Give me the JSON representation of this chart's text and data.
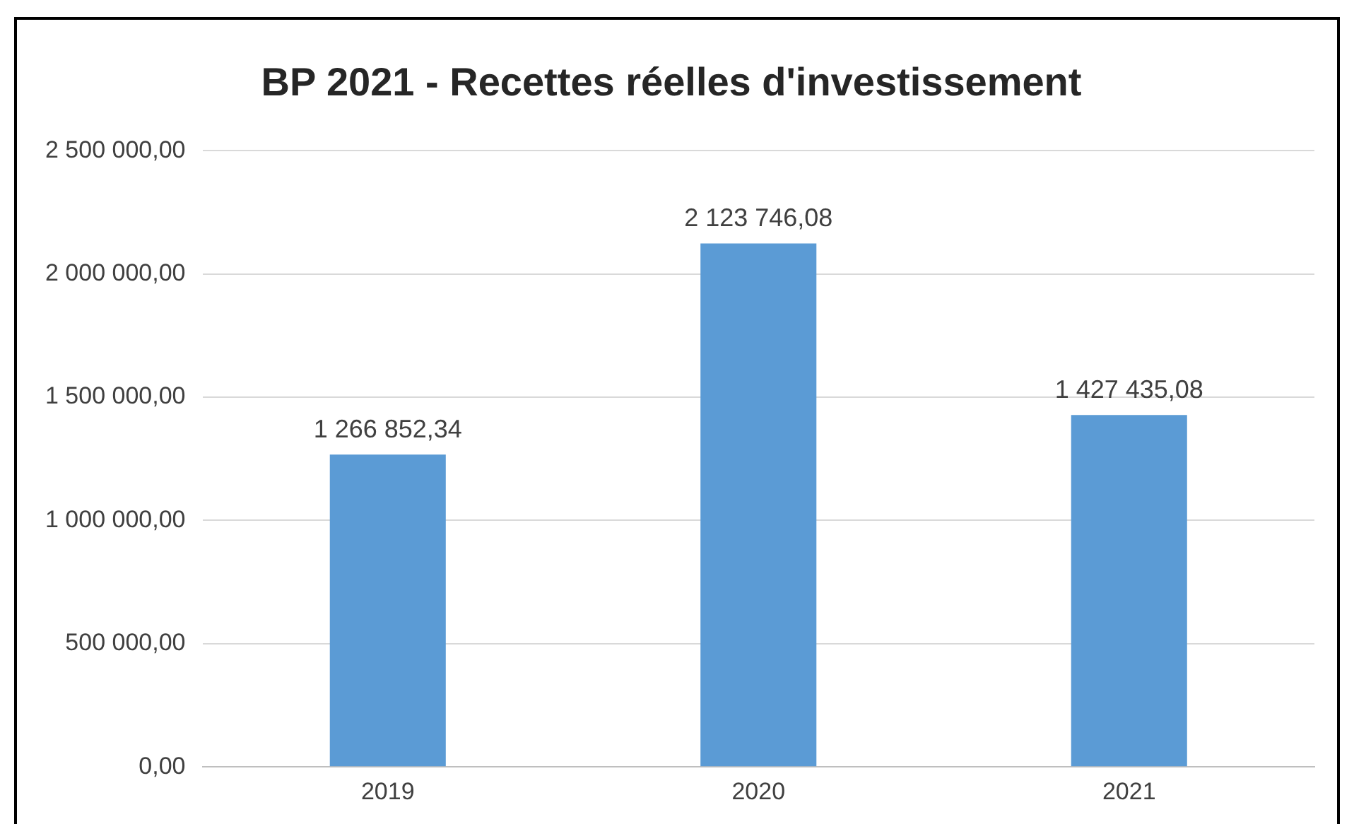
{
  "chart_data": {
    "type": "bar",
    "title": "BP 2021 - Recettes réelles d'investissement",
    "categories": [
      "2019",
      "2020",
      "2021"
    ],
    "values": [
      1266852.34,
      2123746.08,
      1427435.08
    ],
    "value_labels": [
      "1 266 852,34",
      "2 123 746,08",
      "1 427 435,08"
    ],
    "color": "#5b9bd5",
    "ylim": [
      0,
      2500000
    ],
    "yticks": [
      {
        "value": 0,
        "label": "0,00"
      },
      {
        "value": 500000,
        "label": "500 000,00"
      },
      {
        "value": 1000000,
        "label": "1 000 000,00"
      },
      {
        "value": 1500000,
        "label": "1 500 000,00"
      },
      {
        "value": 2000000,
        "label": "2 000 000,00"
      },
      {
        "value": 2500000,
        "label": "2 500 000,00"
      }
    ],
    "grid": "y",
    "legend": false
  }
}
